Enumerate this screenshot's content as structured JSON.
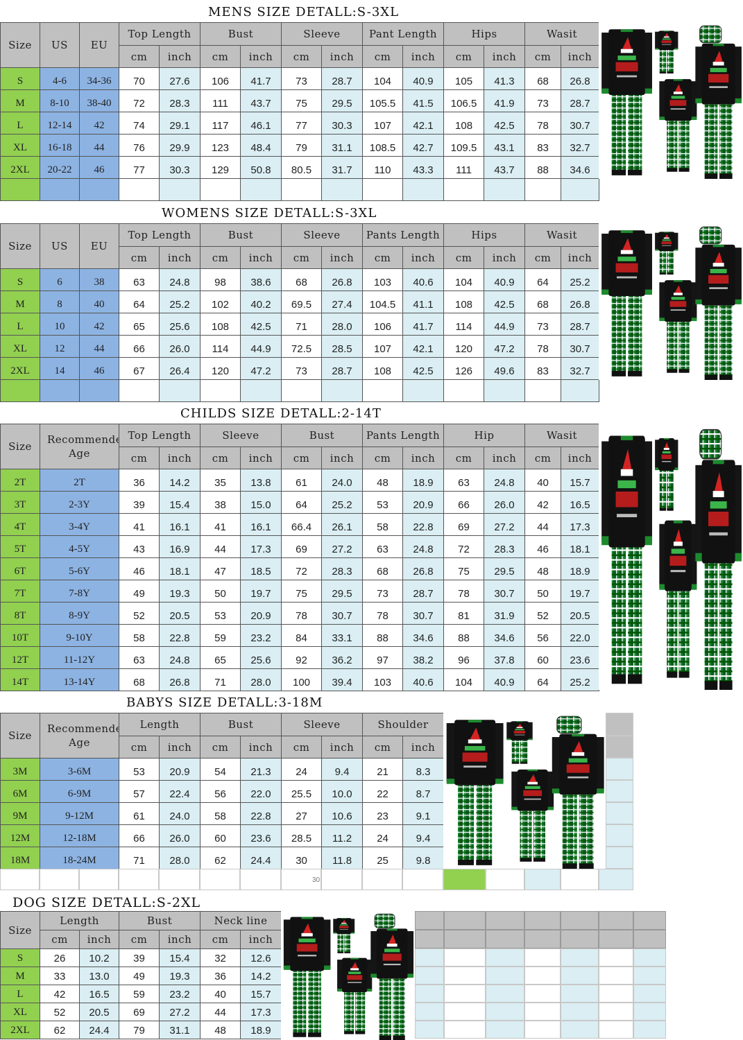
{
  "colors": {
    "size_green": "#92d050",
    "us_eu_blue": "#8db3e2",
    "header_grey": "#c0c0c0",
    "inch_lightblue": "#daeef3"
  },
  "units": {
    "cm": "cm",
    "inch": "inch"
  },
  "sections": [
    {
      "key": "mens",
      "title": "MENS SIZE DETALL:S-3XL",
      "lead": [
        "Size",
        "US",
        "EU"
      ],
      "groups": [
        "Top Length",
        "Bust",
        "Sleeve",
        "Pant Length",
        "Hips",
        "Wasit"
      ],
      "rows": [
        [
          "S",
          "4-6",
          "34-36",
          "70",
          "27.6",
          "106",
          "41.7",
          "73",
          "28.7",
          "104",
          "40.9",
          "105",
          "41.3",
          "68",
          "26.8"
        ],
        [
          "M",
          "8-10",
          "38-40",
          "72",
          "28.3",
          "111",
          "43.7",
          "75",
          "29.5",
          "105.5",
          "41.5",
          "106.5",
          "41.9",
          "73",
          "28.7"
        ],
        [
          "L",
          "12-14",
          "42",
          "74",
          "29.1",
          "117",
          "46.1",
          "77",
          "30.3",
          "107",
          "42.1",
          "108",
          "42.5",
          "78",
          "30.7"
        ],
        [
          "XL",
          "16-18",
          "44",
          "76",
          "29.9",
          "123",
          "48.4",
          "79",
          "31.1",
          "108.5",
          "42.7",
          "109.5",
          "43.1",
          "83",
          "32.7"
        ],
        [
          "2XL",
          "20-22",
          "46",
          "77",
          "30.3",
          "129",
          "50.8",
          "80.5",
          "31.7",
          "110",
          "43.3",
          "111",
          "43.7",
          "88",
          "34.6"
        ]
      ],
      "image_icon": "family-pajamas-image"
    },
    {
      "key": "womens",
      "title": "WOMENS SIZE DETALL:S-3XL",
      "lead": [
        "Size",
        "US",
        "EU"
      ],
      "groups": [
        "Top Length",
        "Bust",
        "Sleeve",
        "Pants Length",
        "Hips",
        "Wasit"
      ],
      "rows": [
        [
          "S",
          "6",
          "38",
          "63",
          "24.8",
          "98",
          "38.6",
          "68",
          "26.8",
          "103",
          "40.6",
          "104",
          "40.9",
          "64",
          "25.2"
        ],
        [
          "M",
          "8",
          "40",
          "64",
          "25.2",
          "102",
          "40.2",
          "69.5",
          "27.4",
          "104.5",
          "41.1",
          "108",
          "42.5",
          "68",
          "26.8"
        ],
        [
          "L",
          "10",
          "42",
          "65",
          "25.6",
          "108",
          "42.5",
          "71",
          "28.0",
          "106",
          "41.7",
          "114",
          "44.9",
          "73",
          "28.7"
        ],
        [
          "XL",
          "12",
          "44",
          "66",
          "26.0",
          "114",
          "44.9",
          "72.5",
          "28.5",
          "107",
          "42.1",
          "120",
          "47.2",
          "78",
          "30.7"
        ],
        [
          "2XL",
          "14",
          "46",
          "67",
          "26.4",
          "120",
          "47.2",
          "73",
          "28.7",
          "108",
          "42.5",
          "126",
          "49.6",
          "83",
          "32.7"
        ]
      ],
      "image_icon": "family-pajamas-image"
    },
    {
      "key": "childs",
      "title": "CHILDS SIZE DETALL:2-14T",
      "lead": [
        "Size",
        "Recommended Age"
      ],
      "groups": [
        "Top Length",
        "Sleeve",
        "Bust",
        "Pants Length",
        "Hip",
        "Wasit"
      ],
      "rows": [
        [
          "2T",
          "2T",
          "36",
          "14.2",
          "35",
          "13.8",
          "61",
          "24.0",
          "48",
          "18.9",
          "63",
          "24.8",
          "40",
          "15.7"
        ],
        [
          "3T",
          "2-3Y",
          "39",
          "15.4",
          "38",
          "15.0",
          "64",
          "25.2",
          "53",
          "20.9",
          "66",
          "26.0",
          "42",
          "16.5"
        ],
        [
          "4T",
          "3-4Y",
          "41",
          "16.1",
          "41",
          "16.1",
          "66.4",
          "26.1",
          "58",
          "22.8",
          "69",
          "27.2",
          "44",
          "17.3"
        ],
        [
          "5T",
          "4-5Y",
          "43",
          "16.9",
          "44",
          "17.3",
          "69",
          "27.2",
          "63",
          "24.8",
          "72",
          "28.3",
          "46",
          "18.1"
        ],
        [
          "6T",
          "5-6Y",
          "46",
          "18.1",
          "47",
          "18.5",
          "72",
          "28.3",
          "68",
          "26.8",
          "75",
          "29.5",
          "48",
          "18.9"
        ],
        [
          "7T",
          "7-8Y",
          "49",
          "19.3",
          "50",
          "19.7",
          "75",
          "29.5",
          "73",
          "28.7",
          "78",
          "30.7",
          "50",
          "19.7"
        ],
        [
          "8T",
          "8-9Y",
          "52",
          "20.5",
          "53",
          "20.9",
          "78",
          "30.7",
          "78",
          "30.7",
          "81",
          "31.9",
          "52",
          "20.5"
        ],
        [
          "10T",
          "9-10Y",
          "58",
          "22.8",
          "59",
          "23.2",
          "84",
          "33.1",
          "88",
          "34.6",
          "88",
          "34.6",
          "56",
          "22.0"
        ],
        [
          "12T",
          "11-12Y",
          "63",
          "24.8",
          "65",
          "25.6",
          "92",
          "36.2",
          "97",
          "38.2",
          "96",
          "37.8",
          "60",
          "23.6"
        ],
        [
          "14T",
          "13-14Y",
          "68",
          "26.8",
          "71",
          "28.0",
          "100",
          "39.4",
          "103",
          "40.6",
          "104",
          "40.9",
          "64",
          "25.2"
        ]
      ],
      "image_icon": "family-pajamas-image"
    },
    {
      "key": "babys",
      "title": "BABYS SIZE DETALL:3-18M",
      "lead": [
        "Size",
        "Recommended Age"
      ],
      "groups": [
        "Length",
        "Bust",
        "Sleeve",
        "Shoulder"
      ],
      "rows": [
        [
          "3M",
          "3-6M",
          "53",
          "20.9",
          "54",
          "21.3",
          "24",
          "9.4",
          "21",
          "8.3"
        ],
        [
          "6M",
          "6-9M",
          "57",
          "22.4",
          "56",
          "22.0",
          "25.5",
          "10.0",
          "22",
          "8.7"
        ],
        [
          "9M",
          "9-12M",
          "61",
          "24.0",
          "58",
          "22.8",
          "27",
          "10.6",
          "23",
          "9.1"
        ],
        [
          "12M",
          "12-18M",
          "66",
          "26.0",
          "60",
          "23.6",
          "28.5",
          "11.2",
          "24",
          "9.4"
        ],
        [
          "18M",
          "18-24M",
          "71",
          "28.0",
          "62",
          "24.4",
          "30",
          "11.8",
          "25",
          "9.8"
        ]
      ],
      "footnote": "30",
      "image_icon": "family-pajamas-image"
    },
    {
      "key": "dog",
      "title": "DOG SIZE DETALL:S-2XL",
      "lead": [
        "Size"
      ],
      "groups": [
        "Length",
        "Bust",
        "Neck line"
      ],
      "rows": [
        [
          "S",
          "26",
          "10.2",
          "39",
          "15.4",
          "32",
          "12.6"
        ],
        [
          "M",
          "33",
          "13.0",
          "49",
          "19.3",
          "36",
          "14.2"
        ],
        [
          "L",
          "42",
          "16.5",
          "59",
          "23.2",
          "40",
          "15.7"
        ],
        [
          "XL",
          "52",
          "20.5",
          "69",
          "27.2",
          "44",
          "17.3"
        ],
        [
          "2XL",
          "62",
          "24.4",
          "79",
          "31.1",
          "48",
          "18.9"
        ]
      ],
      "image_icon": "family-pajamas-image"
    }
  ]
}
